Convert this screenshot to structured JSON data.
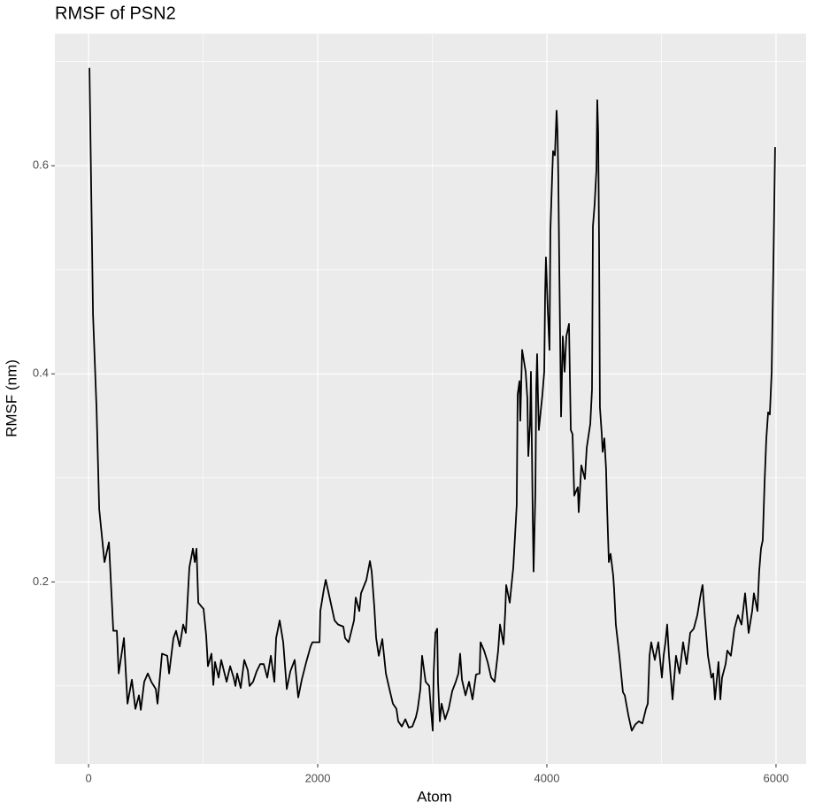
{
  "chart_data": {
    "type": "line",
    "title": "RMSF of PSN2",
    "x_label": "Atom",
    "y_label": "RMSF (nm)",
    "xlim": [
      -294,
      6263
    ],
    "ylim": [
      0.025,
      0.727
    ],
    "xticks": [
      0,
      2000,
      4000,
      6000
    ],
    "yticks": [
      0.2,
      0.4,
      0.6
    ],
    "x_minor_ticks": [
      1000,
      3000,
      5000
    ],
    "y_minor_ticks": [
      0.1,
      0.3,
      0.5,
      0.7
    ],
    "grid": true,
    "background": "#ebebeb",
    "series": [
      {
        "name": "RMSF",
        "color": "#000000",
        "x": [
          8,
          39,
          70,
          93,
          139,
          178,
          216,
          247,
          263,
          309,
          340,
          378,
          409,
          440,
          456,
          486,
          517,
          548,
          587,
          602,
          641,
          687,
          703,
          741,
          764,
          795,
          826,
          849,
          880,
          911,
          927,
          942,
          958,
          988,
          1004,
          1027,
          1042,
          1073,
          1089,
          1104,
          1135,
          1158,
          1205,
          1236,
          1266,
          1282,
          1297,
          1328,
          1359,
          1390,
          1405,
          1436,
          1467,
          1498,
          1529,
          1560,
          1591,
          1622,
          1637,
          1668,
          1699,
          1730,
          1761,
          1799,
          1830,
          1861,
          1900,
          1938,
          1954,
          2016,
          2023,
          2054,
          2070,
          2100,
          2147,
          2178,
          2224,
          2239,
          2270,
          2317,
          2332,
          2363,
          2378,
          2425,
          2456,
          2471,
          2494,
          2510,
          2533,
          2564,
          2595,
          2626,
          2656,
          2687,
          2703,
          2734,
          2765,
          2795,
          2826,
          2857,
          2873,
          2896,
          2911,
          2942,
          2973,
          2988,
          3004,
          3012,
          3027,
          3043,
          3050,
          3066,
          3081,
          3112,
          3143,
          3174,
          3205,
          3228,
          3243,
          3259,
          3290,
          3321,
          3351,
          3382,
          3413,
          3421,
          3452,
          3483,
          3514,
          3544,
          3575,
          3591,
          3622,
          3637,
          3645,
          3676,
          3707,
          3737,
          3745,
          3761,
          3768,
          3784,
          3815,
          3830,
          3838,
          3853,
          3861,
          3877,
          3884,
          3900,
          3907,
          3915,
          3923,
          3930,
          3961,
          3977,
          3985,
          3992,
          4008,
          4023,
          4031,
          4046,
          4054,
          4070,
          4085,
          4093,
          4100,
          4108,
          4124,
          4139,
          4155,
          4170,
          4193,
          4209,
          4224,
          4239,
          4270,
          4278,
          4301,
          4332,
          4348,
          4379,
          4394,
          4402,
          4417,
          4433,
          4440,
          4448,
          4456,
          4463,
          4479,
          4487,
          4502,
          4517,
          4525,
          4541,
          4556,
          4579,
          4587,
          4602,
          4633,
          4664,
          4680,
          4711,
          4741,
          4772,
          4803,
          4834,
          4865,
          4881,
          4896,
          4911,
          4942,
          4973,
          5004,
          5019,
          5035,
          5050,
          5066,
          5097,
          5127,
          5158,
          5189,
          5220,
          5251,
          5282,
          5313,
          5344,
          5359,
          5375,
          5406,
          5436,
          5452,
          5467,
          5498,
          5514,
          5529,
          5560,
          5575,
          5606,
          5637,
          5668,
          5699,
          5730,
          5761,
          5792,
          5807,
          5838,
          5853,
          5869,
          5884,
          5900,
          5915,
          5931,
          5946,
          5962,
          5977,
          5992
        ],
        "values": [
          0.694,
          0.457,
          0.366,
          0.27,
          0.219,
          0.238,
          0.153,
          0.153,
          0.112,
          0.146,
          0.083,
          0.106,
          0.078,
          0.091,
          0.077,
          0.104,
          0.112,
          0.104,
          0.097,
          0.083,
          0.131,
          0.129,
          0.112,
          0.146,
          0.153,
          0.138,
          0.159,
          0.151,
          0.214,
          0.232,
          0.219,
          0.232,
          0.18,
          0.176,
          0.174,
          0.148,
          0.119,
          0.131,
          0.101,
          0.123,
          0.108,
          0.125,
          0.104,
          0.119,
          0.108,
          0.1,
          0.112,
          0.098,
          0.125,
          0.115,
          0.1,
          0.104,
          0.114,
          0.121,
          0.121,
          0.108,
          0.129,
          0.104,
          0.146,
          0.163,
          0.142,
          0.097,
          0.114,
          0.125,
          0.089,
          0.106,
          0.123,
          0.138,
          0.142,
          0.142,
          0.172,
          0.193,
          0.202,
          0.187,
          0.163,
          0.159,
          0.157,
          0.146,
          0.142,
          0.163,
          0.185,
          0.172,
          0.189,
          0.202,
          0.22,
          0.21,
          0.176,
          0.146,
          0.129,
          0.145,
          0.112,
          0.097,
          0.083,
          0.078,
          0.066,
          0.061,
          0.068,
          0.06,
          0.061,
          0.07,
          0.078,
          0.097,
          0.129,
          0.104,
          0.1,
          0.078,
          0.057,
          0.112,
          0.151,
          0.155,
          0.104,
          0.066,
          0.083,
          0.068,
          0.078,
          0.095,
          0.104,
          0.112,
          0.131,
          0.106,
          0.091,
          0.104,
          0.087,
          0.111,
          0.112,
          0.142,
          0.134,
          0.123,
          0.108,
          0.104,
          0.134,
          0.159,
          0.14,
          0.172,
          0.197,
          0.18,
          0.214,
          0.274,
          0.38,
          0.393,
          0.355,
          0.423,
          0.402,
          0.376,
          0.321,
          0.351,
          0.402,
          0.261,
          0.21,
          0.287,
          0.385,
          0.419,
          0.376,
          0.346,
          0.38,
          0.402,
          0.478,
          0.512,
          0.461,
          0.423,
          0.538,
          0.589,
          0.614,
          0.61,
          0.653,
          0.632,
          0.589,
          0.508,
          0.359,
          0.436,
          0.402,
          0.436,
          0.448,
          0.346,
          0.342,
          0.283,
          0.291,
          0.267,
          0.312,
          0.299,
          0.329,
          0.352,
          0.385,
          0.542,
          0.563,
          0.597,
          0.663,
          0.632,
          0.521,
          0.368,
          0.342,
          0.325,
          0.338,
          0.308,
          0.274,
          0.219,
          0.227,
          0.206,
          0.193,
          0.159,
          0.129,
          0.094,
          0.091,
          0.072,
          0.057,
          0.063,
          0.066,
          0.064,
          0.078,
          0.083,
          0.129,
          0.142,
          0.125,
          0.142,
          0.108,
          0.129,
          0.142,
          0.159,
          0.129,
          0.087,
          0.129,
          0.112,
          0.142,
          0.121,
          0.151,
          0.155,
          0.168,
          0.189,
          0.197,
          0.172,
          0.129,
          0.108,
          0.112,
          0.087,
          0.123,
          0.087,
          0.108,
          0.121,
          0.134,
          0.129,
          0.155,
          0.168,
          0.159,
          0.189,
          0.151,
          0.172,
          0.189,
          0.172,
          0.21,
          0.232,
          0.24,
          0.295,
          0.337,
          0.363,
          0.361,
          0.402,
          0.504,
          0.618
        ]
      }
    ]
  }
}
